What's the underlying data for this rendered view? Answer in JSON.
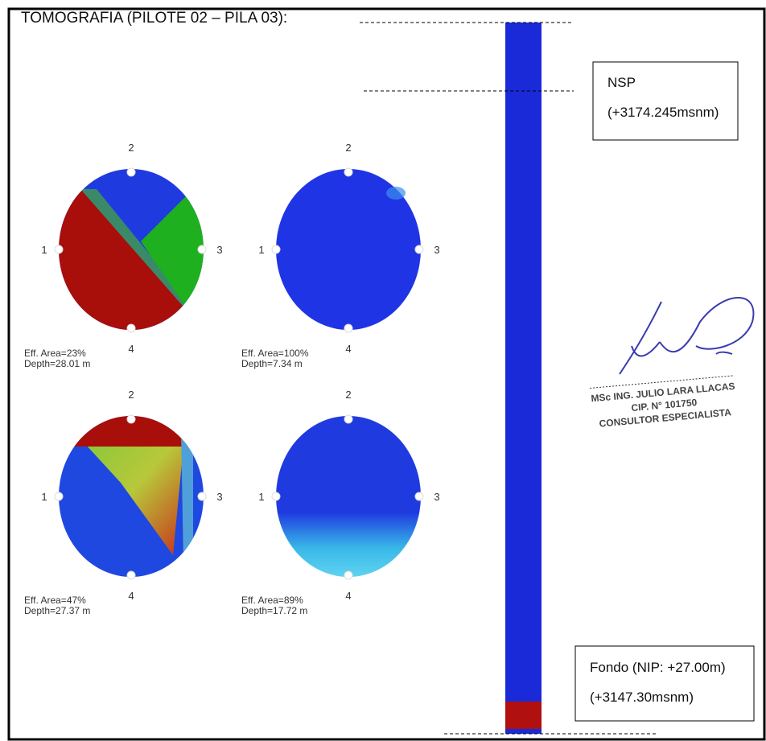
{
  "title": "TOMOGRAFIA (PILOTE 02 – PILA 03):",
  "sensors": [
    "1",
    "2",
    "3",
    "4"
  ],
  "tomograms": [
    {
      "effective_area": "Eff. Area=23%",
      "depth": "Depth=28.01 m"
    },
    {
      "effective_area": "Eff. Area=100%",
      "depth": "Depth=7.34 m"
    },
    {
      "effective_area": "Eff. Area=47%",
      "depth": "Depth=27.37 m"
    },
    {
      "effective_area": "Eff. Area=89%",
      "depth": "Depth=17.72 m"
    }
  ],
  "nsp_box": {
    "label": "NSP",
    "elevation": "(+3174.245msnm)"
  },
  "bottom_box": {
    "label": "Fondo (NIP: +27.00m)",
    "elevation": "(+3147.30msnm)"
  },
  "stamp": {
    "name": "MSc ING. JULIO LARA LLACAS",
    "cip": "CIP. N° 101750",
    "role": "CONSULTOR ESPECIALISTA"
  }
}
